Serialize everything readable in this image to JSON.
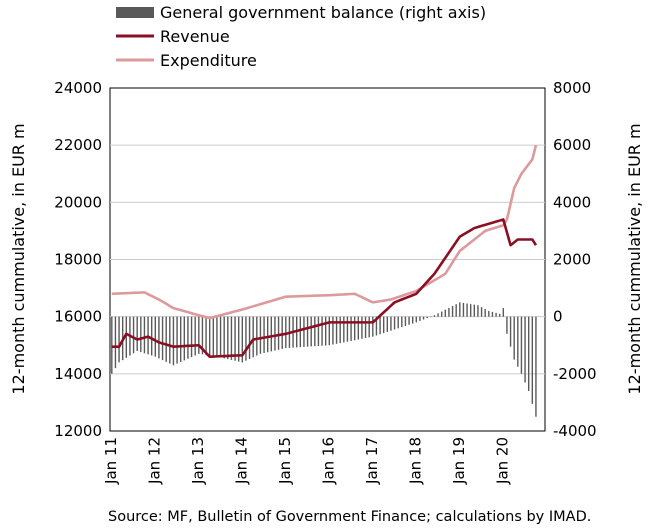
{
  "chart_data": {
    "type": "bar+line",
    "legend": {
      "placement": "top-left",
      "items": [
        {
          "label": "General government balance (right axis)",
          "kind": "bar",
          "color": "#595959"
        },
        {
          "label": "Revenue",
          "kind": "line",
          "color": "#8b0f22"
        },
        {
          "label": "Expenditure",
          "kind": "line",
          "color": "#dd9a9c"
        }
      ]
    },
    "ylabel_left": "12-month cummulative, in EUR m",
    "ylabel_right": "12-month cummulative, in EUR m",
    "ylim_left": [
      12000,
      24000
    ],
    "ylim_right": [
      -4000,
      8000
    ],
    "yticks_left": [
      12000,
      14000,
      16000,
      18000,
      20000,
      22000,
      24000
    ],
    "yticks_right": [
      -4000,
      -2000,
      0,
      2000,
      4000,
      6000,
      8000
    ],
    "ytick_labels_left": [
      "12000",
      "14000",
      "16000",
      "18000",
      "20000",
      "22000",
      "24000"
    ],
    "ytick_labels_right": [
      "-4000",
      "-2000",
      "0",
      "2000",
      "4000",
      "6000",
      "8000"
    ],
    "x_tick_labels": [
      "Jan 11",
      "Jan 12",
      "Jan 13",
      "Jan 14",
      "Jan 15",
      "Jan 16",
      "Jan 17",
      "Jan 18",
      "Jan 19",
      "Jan 20"
    ],
    "grid": "horizontal",
    "start_month": "Jan 11",
    "revenue_knots": [
      [
        "Jan 11",
        14950
      ],
      [
        "Mar 11",
        14950
      ],
      [
        "May 11",
        15400
      ],
      [
        "Aug 11",
        15200
      ],
      [
        "Nov 11",
        15300
      ],
      [
        "Feb 12",
        15100
      ],
      [
        "Jun 12",
        14950
      ],
      [
        "Jan 13",
        15000
      ],
      [
        "Apr 13",
        14600
      ],
      [
        "Jan 14",
        14650
      ],
      [
        "Apr 14",
        15200
      ],
      [
        "Jan 15",
        15400
      ],
      [
        "Jan 16",
        15800
      ],
      [
        "Jan 17",
        15800
      ],
      [
        "Jul 17",
        16500
      ],
      [
        "Jan 18",
        16800
      ],
      [
        "Jun 18",
        17500
      ],
      [
        "Jan 19",
        18800
      ],
      [
        "May 19",
        19100
      ],
      [
        "Jan 20",
        19400
      ],
      [
        "Mar 20",
        18500
      ],
      [
        "May 20",
        18700
      ],
      [
        "Sep 20",
        18700
      ],
      [
        "Oct 20",
        18500
      ]
    ],
    "expenditure_knots": [
      [
        "Jan 11",
        16800
      ],
      [
        "Oct 11",
        16850
      ],
      [
        "Feb 12",
        16600
      ],
      [
        "Jun 12",
        16300
      ],
      [
        "Jan 13",
        16050
      ],
      [
        "Apr 13",
        15950
      ],
      [
        "Jan 14",
        16250
      ],
      [
        "Jan 15",
        16700
      ],
      [
        "Jan 16",
        16750
      ],
      [
        "Aug 16",
        16800
      ],
      [
        "Jan 17",
        16500
      ],
      [
        "Jun 17",
        16600
      ],
      [
        "Jan 18",
        16900
      ],
      [
        "Sep 18",
        17500
      ],
      [
        "Jan 19",
        18300
      ],
      [
        "Aug 19",
        19000
      ],
      [
        "Jan 20",
        19200
      ],
      [
        "Feb 20",
        19400
      ],
      [
        "Apr 20",
        20500
      ],
      [
        "Jun 20",
        21000
      ],
      [
        "Sep 20",
        21500
      ],
      [
        "Oct 20",
        22000
      ]
    ],
    "balance_knots": [
      [
        "Jan 11",
        -2000
      ],
      [
        "Mar 11",
        -1600
      ],
      [
        "Aug 11",
        -1200
      ],
      [
        "Jan 12",
        -1400
      ],
      [
        "Jun 12",
        -1700
      ],
      [
        "Jan 13",
        -1300
      ],
      [
        "Jun 13",
        -1400
      ],
      [
        "Jan 14",
        -1600
      ],
      [
        "Jun 14",
        -1300
      ],
      [
        "Jan 15",
        -1100
      ],
      [
        "Jan 16",
        -1000
      ],
      [
        "Jan 17",
        -700
      ],
      [
        "Jan 18",
        -200
      ],
      [
        "Jun 18",
        50
      ],
      [
        "Jan 19",
        500
      ],
      [
        "Jun 19",
        400
      ],
      [
        "Sep 19",
        200
      ],
      [
        "Dec 19",
        100
      ],
      [
        "Jan 20",
        300
      ],
      [
        "Feb 20",
        -600
      ],
      [
        "Apr 20",
        -1500
      ],
      [
        "Jun 20",
        -2000
      ],
      [
        "Aug 20",
        -2600
      ],
      [
        "Oct 20",
        -3500
      ]
    ]
  },
  "source_note": "Source: MF, Bulletin of Government Finance; calculations by IMAD."
}
